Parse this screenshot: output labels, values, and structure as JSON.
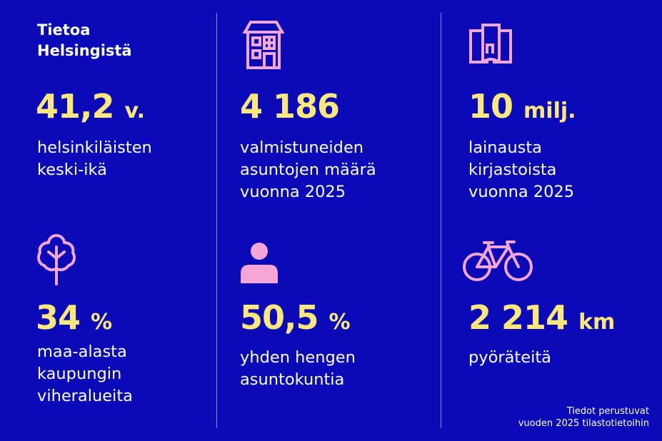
{
  "header": {
    "title_line1": "Tietoa",
    "title_line2": "Helsingistä"
  },
  "stats": [
    {
      "value": "41,2",
      "unit": "v.",
      "lines": [
        "helsinkiläisten",
        "keski-ikä"
      ]
    },
    {
      "value": "4 186",
      "unit": "",
      "lines": [
        "valmistuneiden",
        "asuntojen määrä",
        "vuonna 2025"
      ]
    },
    {
      "value": "10",
      "unit": "milj.",
      "lines": [
        "lainausta",
        "kirjastoista",
        "vuonna 2025"
      ]
    },
    {
      "value": "34",
      "unit": "%",
      "lines": [
        "maa-alasta",
        "kaupungin",
        "viheralueita"
      ]
    },
    {
      "value": "50,5",
      "unit": "%",
      "lines": [
        "yhden hengen",
        "asuntokuntia"
      ]
    },
    {
      "value": "2 214",
      "unit": "km",
      "lines": [
        "pyöräteitä"
      ]
    }
  ],
  "icons": [
    "building-icon",
    "book-icon",
    "tree-icon",
    "person-icon",
    "bicycle-icon"
  ],
  "footer": {
    "line1": "Tiedot perustuvat",
    "line2": "vuoden 2025 tilastotietoihin"
  },
  "colors": {
    "background": "#0a0ab8",
    "value": "#fbe77a",
    "icon": "#f4a6d7",
    "text": "#ffffff",
    "divider": "#8f8fe6"
  }
}
